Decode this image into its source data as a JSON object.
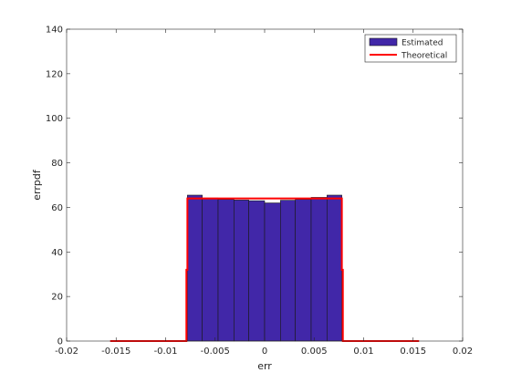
{
  "chart_data": {
    "type": "bar",
    "xlabel": "err",
    "ylabel": "errpdf",
    "xlim": [
      -0.02,
      0.02
    ],
    "ylim": [
      0,
      140
    ],
    "xticks": [
      "-0.02",
      "-0.015",
      "-0.01",
      "-0.005",
      "0",
      "0.005",
      "0.01",
      "0.015",
      "0.02"
    ],
    "yticks": [
      "0",
      "20",
      "40",
      "60",
      "80",
      "100",
      "120",
      "140"
    ],
    "xtick_values": [
      -0.02,
      -0.015,
      -0.01,
      -0.005,
      0,
      0.005,
      0.01,
      0.015,
      0.02
    ],
    "ytick_values": [
      0,
      20,
      40,
      60,
      80,
      100,
      120,
      140
    ],
    "grid": false,
    "legend_position": "top-right",
    "colors": {
      "bars": "#4127a8",
      "bar_edge": "#1a1a1a",
      "theoretical": "#ff0000"
    },
    "series": [
      {
        "name": "Estimated",
        "kind": "histogram",
        "bin_edges": [
          -0.0078,
          -0.0063,
          -0.0047,
          -0.0031,
          -0.0016,
          0.0,
          0.0016,
          0.0031,
          0.0047,
          0.0063,
          0.0078
        ],
        "values": [
          65.5,
          64.2,
          63.6,
          63.3,
          63.0,
          62.0,
          63.2,
          63.6,
          64.5,
          65.5
        ]
      },
      {
        "name": "Theoretical",
        "kind": "line",
        "x": [
          -0.0156,
          -0.0079,
          -0.0079,
          -0.0078,
          -0.0078,
          0.0078,
          0.0078,
          0.0079,
          0.0079,
          0.0156
        ],
        "y": [
          0,
          0,
          32,
          32,
          64,
          64,
          32,
          32,
          0,
          0
        ]
      }
    ]
  }
}
